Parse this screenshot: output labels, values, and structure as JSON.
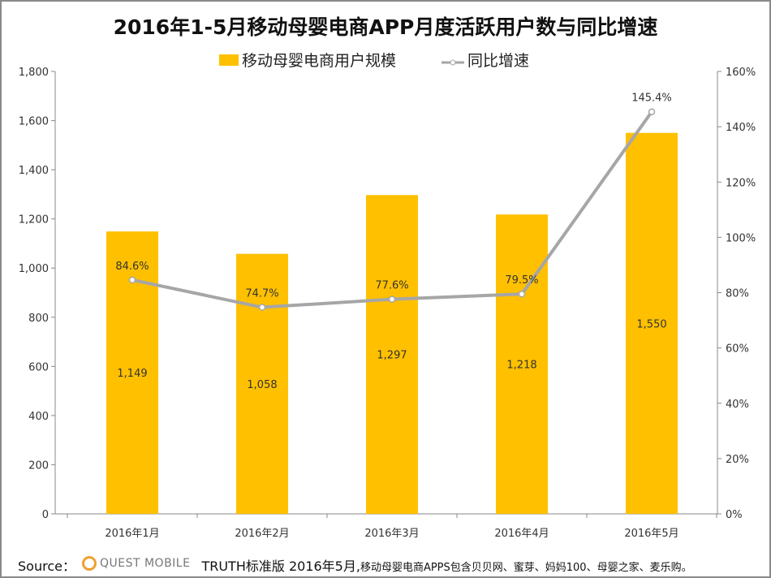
{
  "chart_data": {
    "type": "bar+line",
    "title": "2016年1-5月移动母婴电商APP月度活跃用户数与同比增速",
    "categories": [
      "2016年1月",
      "2016年2月",
      "2016年3月",
      "2016年4月",
      "2016年5月"
    ],
    "series": [
      {
        "name": "移动母婴电商用户规模",
        "type": "bar",
        "axis": "left",
        "values": [
          1149,
          1058,
          1297,
          1218,
          1550
        ],
        "labels": [
          "1,149",
          "1,058",
          "1,297",
          "1,218",
          "1,550"
        ],
        "color": "#ffc000"
      },
      {
        "name": "同比增速",
        "type": "line",
        "axis": "right",
        "values": [
          84.6,
          74.7,
          77.6,
          79.5,
          145.4
        ],
        "labels": [
          "84.6%",
          "74.7%",
          "77.6%",
          "79.5%",
          "145.4%"
        ],
        "color": "#a6a6a6"
      }
    ],
    "ylim": [
      0,
      1800
    ],
    "yticks": [
      "0",
      "200",
      "400",
      "600",
      "800",
      "1,000",
      "1,200",
      "1,400",
      "1,600",
      "1,800"
    ],
    "y2lim": [
      0,
      160
    ],
    "y2ticks": [
      "0%",
      "20%",
      "40%",
      "60%",
      "80%",
      "100%",
      "120%",
      "140%",
      "160%"
    ],
    "grid": false,
    "legend": "top"
  },
  "footer": {
    "source_label": "Source：",
    "logo_text": "QUEST MOBILE",
    "main": "TRUTH标准版 2016年5月,",
    "note": "移动母婴电商APPS包含贝贝网、蜜芽、妈妈100、母婴之家、麦乐购。"
  }
}
